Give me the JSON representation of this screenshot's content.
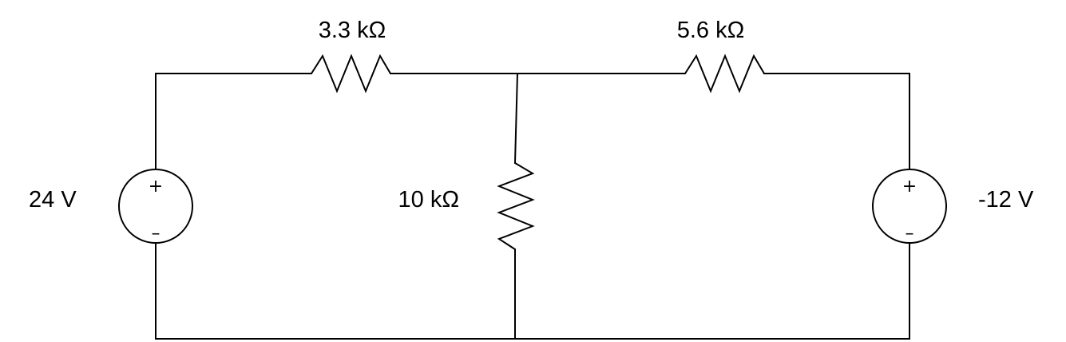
{
  "resistors": {
    "r1": {
      "label": "3.3 kΩ"
    },
    "r2": {
      "label": "5.6 kΩ"
    },
    "r3": {
      "label": "10 kΩ"
    }
  },
  "sources": {
    "left": {
      "label": "24 V",
      "plus": "+",
      "minus": "–"
    },
    "right": {
      "label": "-12 V",
      "plus": "+",
      "minus": "–"
    }
  }
}
